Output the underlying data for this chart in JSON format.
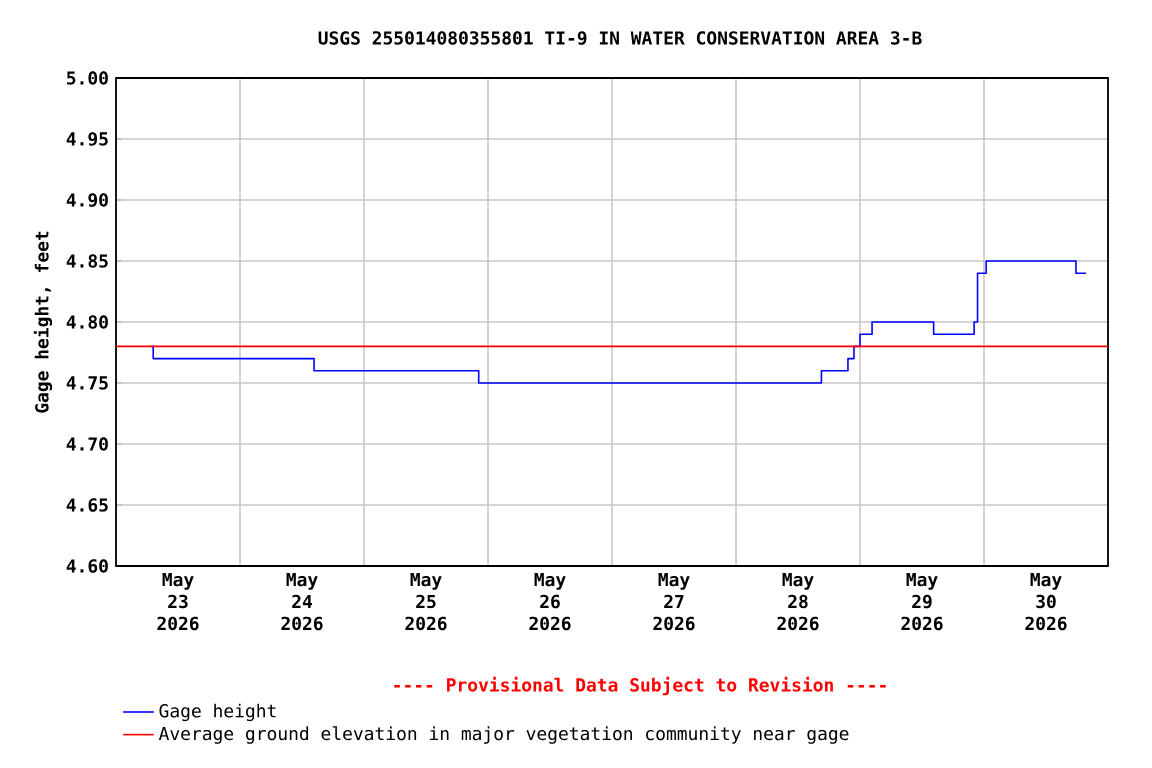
{
  "chart_data": {
    "type": "step",
    "title": "USGS 255014080355801 TI-9 IN WATER CONSERVATION AREA 3-B",
    "ylabel": "Gage height, feet",
    "series": [
      {
        "name": "Gage height",
        "color": "#0000ff",
        "x": [
          "2026-05-23T06:50",
          "2026-05-23T07:12",
          "2026-05-24T14:20",
          "2026-05-25T22:12",
          "2026-05-28T16:32",
          "2026-05-28T21:40",
          "2026-05-28T22:50",
          "2026-05-29T00:00",
          "2026-05-29T02:20",
          "2026-05-29T14:15",
          "2026-05-29T22:05",
          "2026-05-29T22:45",
          "2026-05-30T00:25",
          "2026-05-30T17:48",
          "2026-05-30T19:45"
        ],
        "values": [
          4.78,
          4.77,
          4.76,
          4.75,
          4.76,
          4.77,
          4.78,
          4.79,
          4.8,
          4.79,
          4.8,
          4.84,
          4.85,
          4.84,
          4.84
        ]
      }
    ],
    "ref_lines": [
      {
        "axis": "y",
        "value": 4.78,
        "label": "Average ground elevation in major vegetation community near gage",
        "color": "#ff0000"
      }
    ],
    "annotations": [
      "---- Provisional Data Subject to Revision ----"
    ],
    "xlim": [
      "2026-05-23T00:00",
      "2026-05-31T00:00"
    ],
    "xticks": [
      {
        "value": "2026-05-23T00:00",
        "label": null
      },
      {
        "value": "2026-05-23T12:00",
        "label": "May 23 2026"
      },
      {
        "value": "2026-05-24T00:00",
        "label": null
      },
      {
        "value": "2026-05-24T12:00",
        "label": "May 24 2026"
      },
      {
        "value": "2026-05-25T00:00",
        "label": null
      },
      {
        "value": "2026-05-25T12:00",
        "label": "May 25 2026"
      },
      {
        "value": "2026-05-26T00:00",
        "label": null
      },
      {
        "value": "2026-05-26T12:00",
        "label": "May 26 2026"
      },
      {
        "value": "2026-05-27T00:00",
        "label": null
      },
      {
        "value": "2026-05-27T12:00",
        "label": "May 27 2026"
      },
      {
        "value": "2026-05-28T00:00",
        "label": null
      },
      {
        "value": "2026-05-28T12:00",
        "label": "May 28 2026"
      },
      {
        "value": "2026-05-29T00:00",
        "label": null
      },
      {
        "value": "2026-05-29T12:00",
        "label": "May 29 2026"
      },
      {
        "value": "2026-05-30T00:00",
        "label": null
      },
      {
        "value": "2026-05-30T12:00",
        "label": "May 30 2026"
      },
      {
        "value": "2026-05-31T00:00",
        "label": null
      }
    ],
    "ylim": [
      4.6,
      5.0
    ],
    "yticks": [
      {
        "value": 4.6,
        "label": "4.60"
      },
      {
        "value": 4.65,
        "label": "4.65"
      },
      {
        "value": 4.7,
        "label": "4.70"
      },
      {
        "value": 4.75,
        "label": "4.75"
      },
      {
        "value": 4.8,
        "label": "4.80"
      },
      {
        "value": 4.85,
        "label": "4.85"
      },
      {
        "value": 4.9,
        "label": "4.90"
      },
      {
        "value": 4.95,
        "label": "4.95"
      },
      {
        "value": 5.0,
        "label": "5.00"
      }
    ],
    "grid": true,
    "legend": "bottom",
    "marker": "none",
    "line_style": "solid"
  }
}
